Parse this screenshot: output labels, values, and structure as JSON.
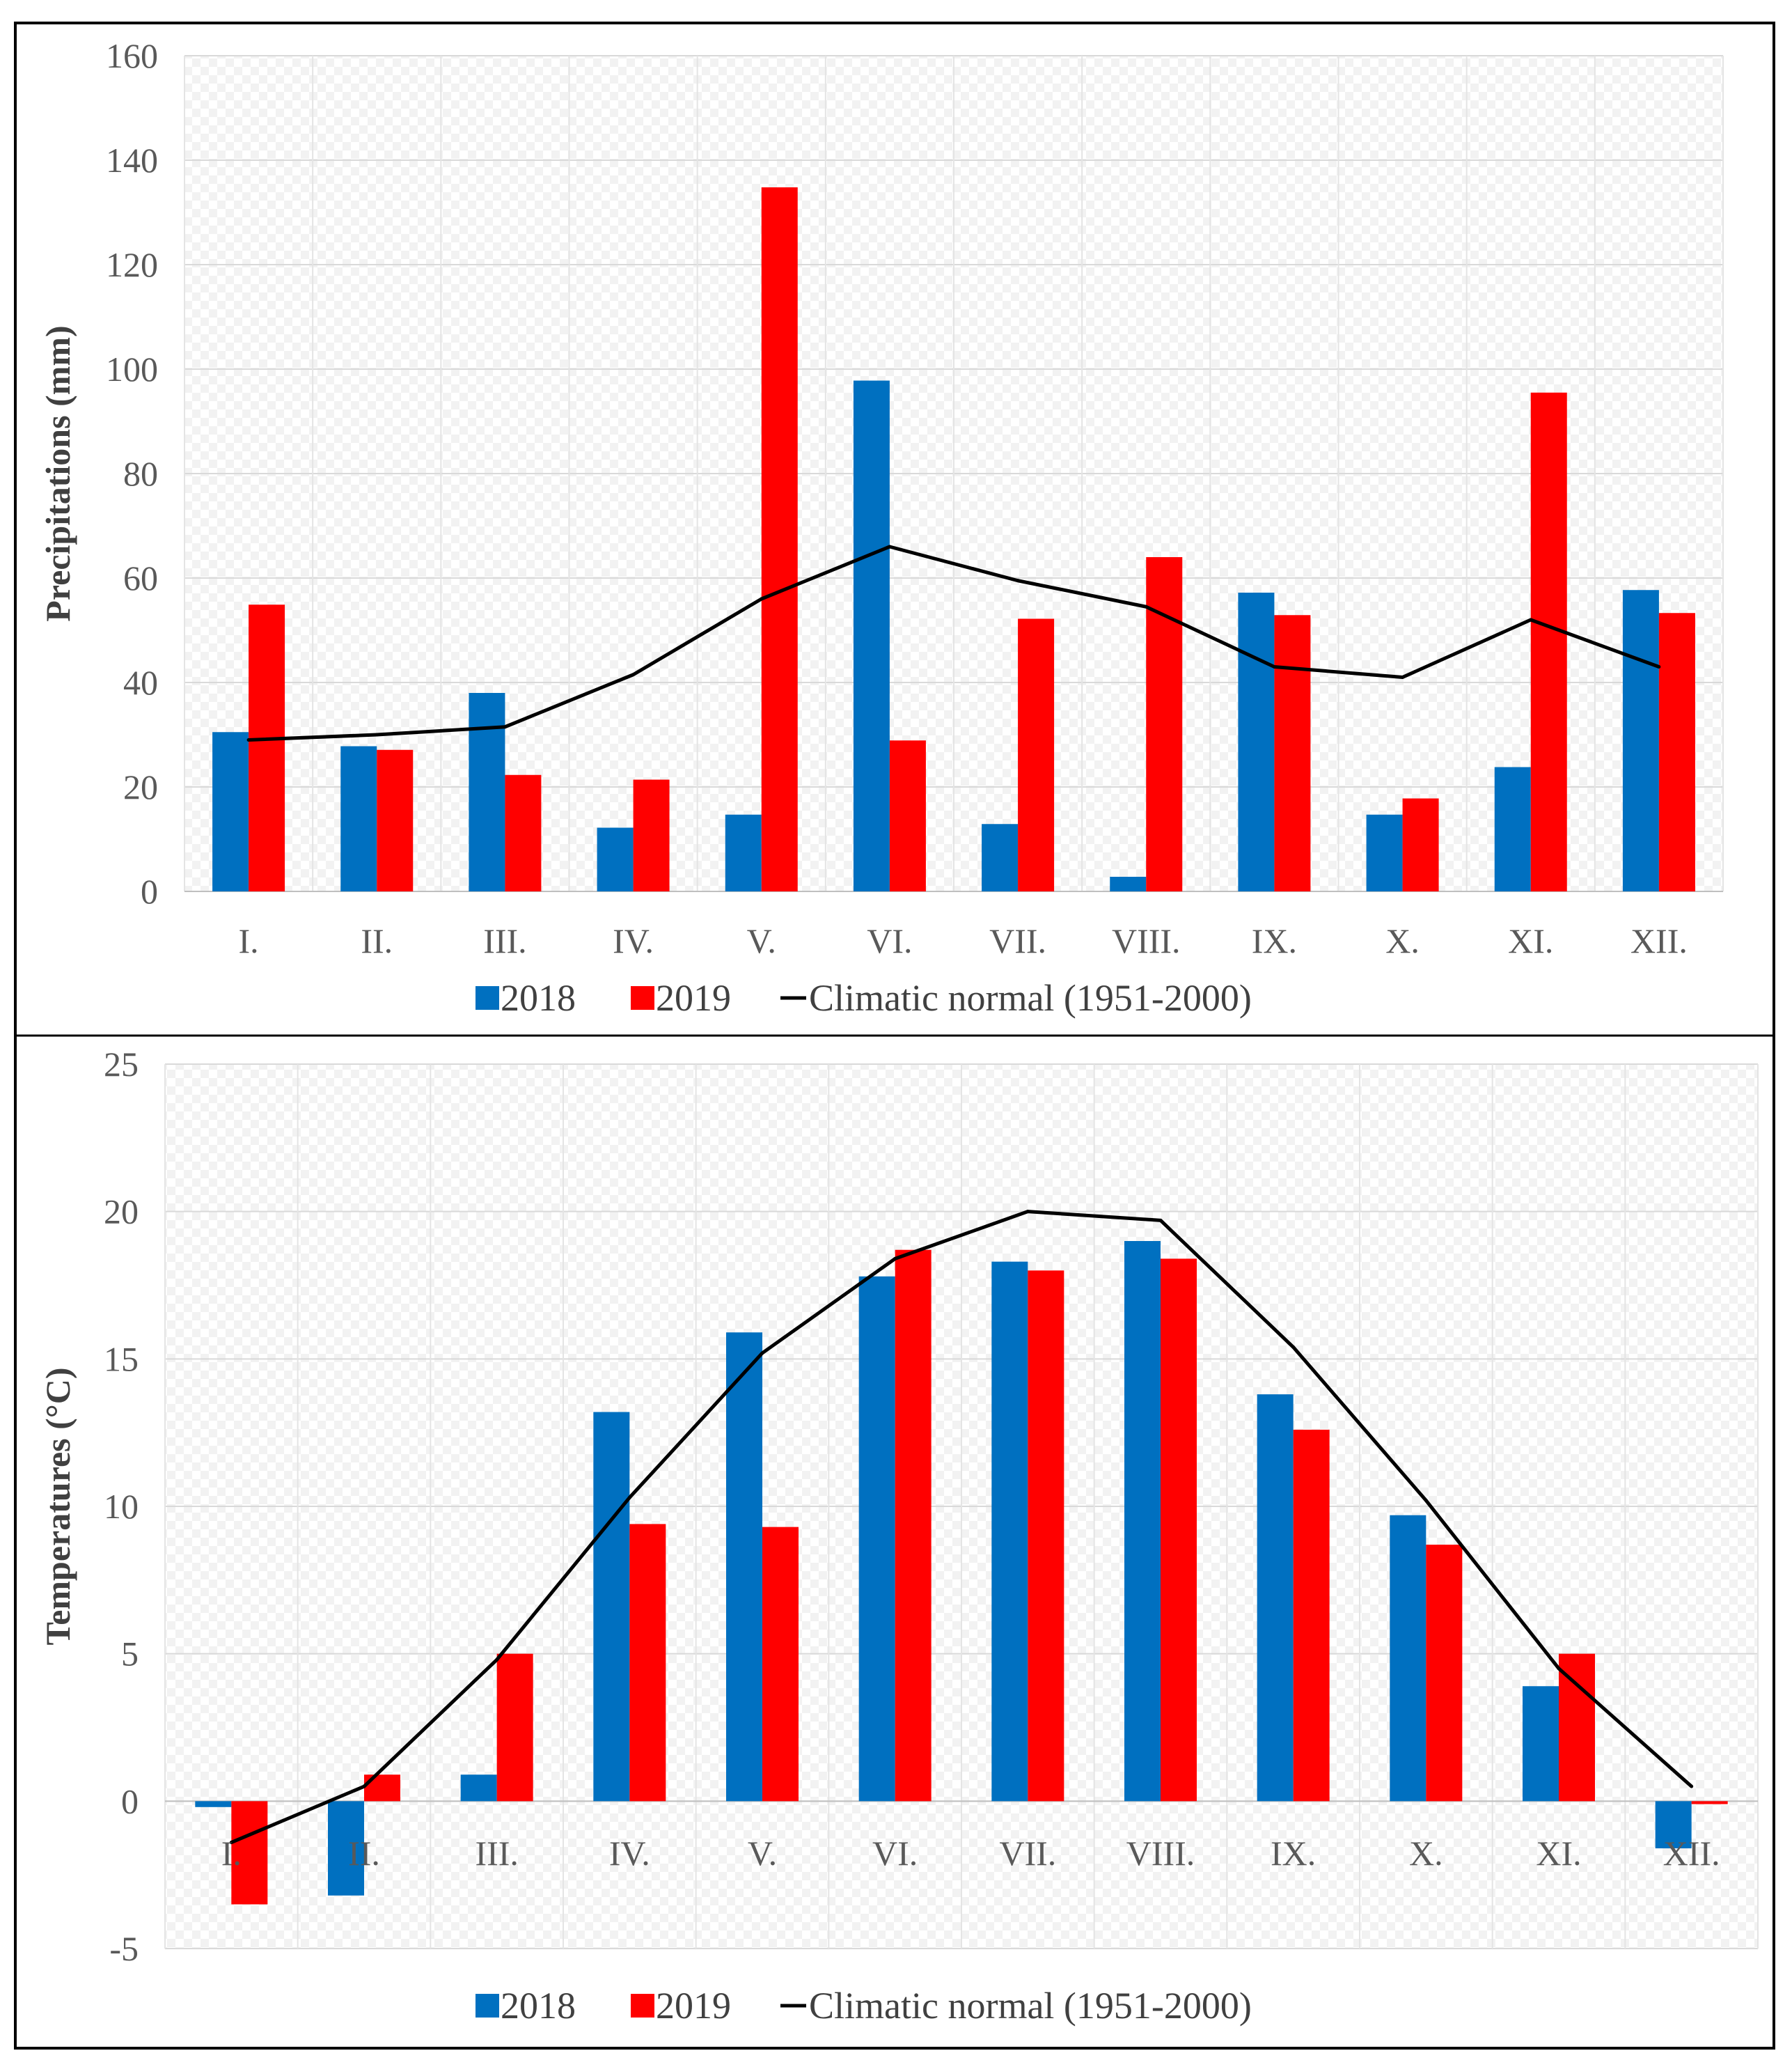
{
  "colors": {
    "series_2018": "#0070C0",
    "series_2019": "#FF0000",
    "normal": "#000000",
    "grid": "#d9d9d9",
    "tick_text": "#595959",
    "title_text": "#404040",
    "frame": "#000000"
  },
  "chart_data": [
    {
      "type": "bar",
      "id": "precipitation",
      "title": "",
      "xlabel": "",
      "ylabel": "Precipitations (mm)",
      "ylim": [
        0,
        160
      ],
      "yticks": [
        0,
        20,
        40,
        60,
        80,
        100,
        120,
        140,
        160
      ],
      "grid": true,
      "legend_position": "bottom",
      "categories": [
        "I.",
        "II.",
        "III.",
        "IV.",
        "V.",
        "VI.",
        "VII.",
        "VIII.",
        "IX.",
        "X.",
        "XI.",
        "XII."
      ],
      "series": [
        {
          "name": "2018",
          "kind": "bar",
          "color": "#0070C0",
          "values": [
            30.5,
            27.8,
            38.0,
            12.2,
            14.7,
            97.8,
            12.9,
            2.8,
            57.2,
            14.7,
            23.8,
            57.7
          ]
        },
        {
          "name": "2019",
          "kind": "bar",
          "color": "#FF0000",
          "values": [
            54.9,
            27.1,
            22.3,
            21.4,
            134.8,
            28.9,
            52.2,
            64.0,
            52.9,
            17.8,
            95.5,
            53.3
          ]
        },
        {
          "name": "Climatic normal (1951-2000)",
          "kind": "line",
          "color": "#000000",
          "values": [
            29.0,
            30.0,
            31.5,
            41.5,
            56.0,
            66.0,
            59.5,
            54.5,
            43.0,
            41.0,
            52.0,
            43.0
          ]
        }
      ]
    },
    {
      "type": "bar",
      "id": "temperature",
      "title": "",
      "xlabel": "",
      "ylabel": "Temperatures (°C)",
      "ylim": [
        -5,
        25
      ],
      "yticks": [
        -5,
        0,
        5,
        10,
        15,
        20,
        25
      ],
      "grid": true,
      "legend_position": "bottom",
      "categories": [
        "I.",
        "II.",
        "III.",
        "IV.",
        "V.",
        "VI.",
        "VII.",
        "VIII.",
        "IX.",
        "X.",
        "XI.",
        "XII."
      ],
      "series": [
        {
          "name": "2018",
          "kind": "bar",
          "color": "#0070C0",
          "values": [
            -0.2,
            -3.2,
            0.9,
            13.2,
            15.9,
            17.8,
            18.3,
            19.0,
            13.8,
            9.7,
            3.9,
            -1.6
          ]
        },
        {
          "name": "2019",
          "kind": "bar",
          "color": "#FF0000",
          "values": [
            -3.5,
            0.9,
            5.0,
            9.4,
            9.3,
            18.7,
            18.0,
            18.4,
            12.6,
            8.7,
            5.0,
            -0.1
          ]
        },
        {
          "name": "Climatic normal (1951-2000)",
          "kind": "line",
          "color": "#000000",
          "values": [
            -1.4,
            0.5,
            4.8,
            10.3,
            15.2,
            18.4,
            20.0,
            19.7,
            15.4,
            10.2,
            4.5,
            0.5
          ]
        }
      ]
    }
  ]
}
